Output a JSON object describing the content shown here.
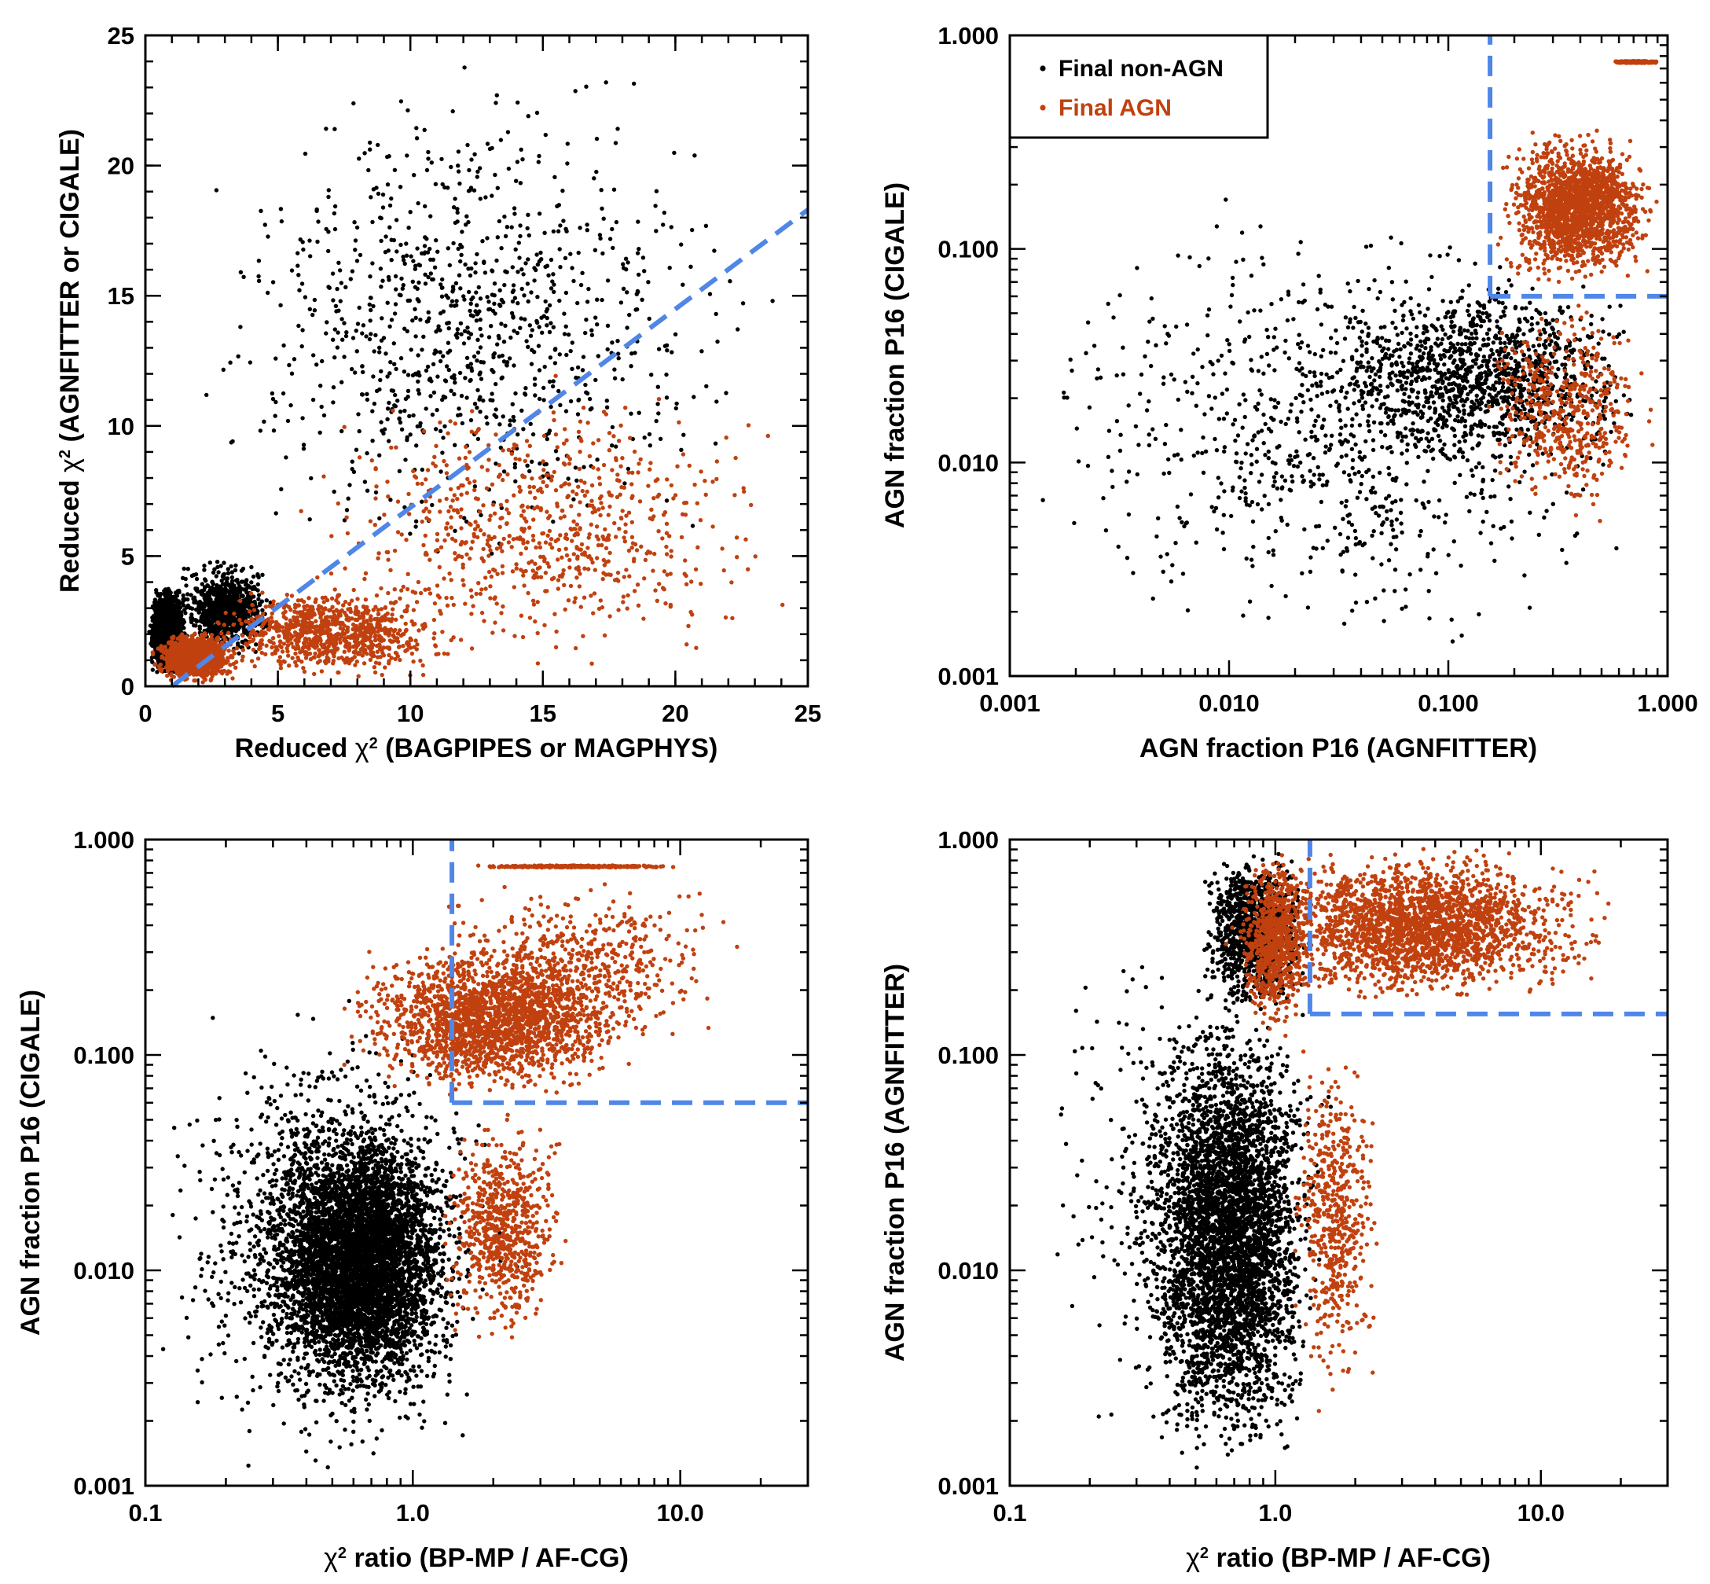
{
  "figure": {
    "colors": {
      "agn": "#c0410f",
      "non_agn": "#000000",
      "threshold": "#4f86e8",
      "axes": "#000000"
    }
  },
  "legend": {
    "entries": [
      {
        "label": "Final non-AGN",
        "color": "#000000"
      },
      {
        "label": "Final AGN",
        "color": "#c0410f"
      }
    ],
    "placement": "top-left of top-right panel"
  },
  "chart_data": [
    {
      "id": "chi2_vs_chi2",
      "type": "scatter",
      "xlabel_prefix": "Reduced ",
      "xlabel_symbol": "χ",
      "xlabel_sup": "2",
      "xlabel_suffix": " (BAGPIPES or MAGPHYS)",
      "ylabel_prefix": "Reduced ",
      "ylabel_symbol": "χ",
      "ylabel_sup": "2",
      "ylabel_suffix": " (AGNFITTER or CIGALE)",
      "xscale": "linear",
      "yscale": "linear",
      "xlim": [
        0,
        25
      ],
      "ylim": [
        0,
        25
      ],
      "xticks": [
        0,
        5,
        10,
        15,
        20,
        25
      ],
      "xtick_labels": [
        "0",
        "5",
        "10",
        "15",
        "20",
        "25"
      ],
      "yticks": [
        0,
        5,
        10,
        15,
        20,
        25
      ],
      "ytick_labels": [
        "0",
        "5",
        "10",
        "15",
        "20",
        "25"
      ],
      "threshold_lines": [
        {
          "x": [
            1,
            25
          ],
          "y": [
            0,
            18.3
          ]
        }
      ],
      "series": [
        {
          "name": "Final non-AGN",
          "color": "#000000",
          "approx_points": 4000,
          "clusters": [
            {
              "weight": 0.55,
              "x": [
                0.1,
                1.6
              ],
              "y": [
                0.3,
                4
              ],
              "lx": false,
              "ly": false
            },
            {
              "weight": 0.2,
              "x": [
                1,
                5
              ],
              "y": [
                1,
                5
              ],
              "lx": false,
              "ly": false
            },
            {
              "weight": 0.25,
              "x": [
                1,
                24
              ],
              "y": [
                3,
                24.5
              ],
              "lx": false,
              "ly": false
            }
          ]
        },
        {
          "name": "Final AGN",
          "color": "#c0410f",
          "approx_points": 3000,
          "clusters": [
            {
              "weight": 0.45,
              "x": [
                0.2,
                3.5
              ],
              "y": [
                0.1,
                2.2
              ],
              "lx": false,
              "ly": false
            },
            {
              "weight": 0.3,
              "x": [
                2,
                12
              ],
              "y": [
                0.1,
                4
              ],
              "lx": false,
              "ly": false
            },
            {
              "weight": 0.25,
              "x": [
                5,
                25
              ],
              "y": [
                0.1,
                12
              ],
              "lx": false,
              "ly": false
            }
          ]
        }
      ]
    },
    {
      "id": "cigale_vs_agnfitter",
      "type": "scatter",
      "xlabel": "AGN fraction P16 (AGNFITTER)",
      "ylabel": "AGN fraction P16 (CIGALE)",
      "xscale": "log",
      "yscale": "log",
      "xlim": [
        0.001,
        1.0
      ],
      "ylim": [
        0.001,
        1.0
      ],
      "xticks": [
        0.001,
        0.01,
        0.1,
        1.0
      ],
      "xtick_labels": [
        "0.001",
        "0.010",
        "0.100",
        "1.000"
      ],
      "yticks": [
        0.001,
        0.01,
        0.1,
        1.0
      ],
      "ytick_labels": [
        "0.001",
        "0.010",
        "0.100",
        "1.000"
      ],
      "threshold_lines": [
        {
          "x": [
            0.155,
            0.155
          ],
          "y": [
            0.06,
            1.0
          ]
        },
        {
          "x": [
            0.155,
            1.0
          ],
          "y": [
            0.06,
            0.06
          ]
        }
      ],
      "series": [
        {
          "name": "Final non-AGN",
          "color": "#000000",
          "approx_points": 2000,
          "clusters": [
            {
              "weight": 0.45,
              "x": [
                0.001,
                0.9
              ],
              "y": [
                0.001,
                0.2
              ],
              "lx": true,
              "ly": true
            },
            {
              "weight": 0.55,
              "x": [
                0.02,
                0.95
              ],
              "y": [
                0.008,
                0.08
              ],
              "lx": true,
              "ly": true
            }
          ]
        },
        {
          "name": "Final AGN",
          "color": "#c0410f",
          "approx_points": 2500,
          "clusters": [
            {
              "weight": 0.7,
              "x": [
                0.16,
                0.95
              ],
              "y": [
                0.065,
                0.38
              ],
              "lx": true,
              "ly": true
            },
            {
              "weight": 0.1,
              "x": [
                0.55,
                0.95
              ],
              "y": [
                0.74,
                0.76
              ],
              "lx": true,
              "ly": false
            },
            {
              "weight": 0.2,
              "x": [
                0.13,
                0.95
              ],
              "y": [
                0.005,
                0.06
              ],
              "lx": true,
              "ly": true
            }
          ]
        }
      ]
    },
    {
      "id": "cigale_vs_chi2ratio",
      "type": "scatter",
      "xlabel_prefix": "",
      "xlabel_symbol": "χ",
      "xlabel_sup": "2",
      "xlabel_suffix": " ratio (BP-MP / AF-CG)",
      "ylabel": "AGN fraction P16 (CIGALE)",
      "xscale": "log",
      "yscale": "log",
      "xlim": [
        0.1,
        30
      ],
      "ylim": [
        0.001,
        1.0
      ],
      "xticks": [
        0.1,
        1.0,
        10.0
      ],
      "xtick_labels": [
        "0.1",
        "1.0",
        "10.0"
      ],
      "yticks": [
        0.001,
        0.01,
        0.1,
        1.0
      ],
      "ytick_labels": [
        "0.001",
        "0.010",
        "0.100",
        "1.000"
      ],
      "threshold_lines": [
        {
          "x": [
            1.4,
            1.4
          ],
          "y": [
            0.06,
            1.0
          ]
        },
        {
          "x": [
            1.4,
            30
          ],
          "y": [
            0.06,
            0.06
          ]
        }
      ],
      "series": [
        {
          "name": "Final non-AGN",
          "color": "#000000",
          "approx_points": 6000,
          "clusters": [
            {
              "weight": 0.75,
              "x": [
                0.25,
                1.6
              ],
              "y": [
                0.002,
                0.06
              ],
              "lx": true,
              "ly": true
            },
            {
              "weight": 0.25,
              "x": [
                0.1,
                2.5
              ],
              "y": [
                0.001,
                0.2
              ],
              "lx": true,
              "ly": true
            }
          ]
        },
        {
          "name": "Final AGN",
          "color": "#c0410f",
          "approx_points": 3500,
          "clusters": [
            {
              "weight": 0.55,
              "x": [
                0.5,
                8
              ],
              "y": [
                0.06,
                0.35
              ],
              "lx": true,
              "ly": true
            },
            {
              "weight": 0.1,
              "x": [
                1.5,
                11
              ],
              "y": [
                0.74,
                0.76
              ],
              "lx": true,
              "ly": false
            },
            {
              "weight": 0.2,
              "x": [
                1.2,
                4
              ],
              "y": [
                0.004,
                0.06
              ],
              "lx": true,
              "ly": true
            },
            {
              "weight": 0.15,
              "x": [
                0.8,
                20
              ],
              "y": [
                0.1,
                0.7
              ],
              "lx": true,
              "ly": true
            }
          ]
        }
      ]
    },
    {
      "id": "agnfitter_vs_chi2ratio",
      "type": "scatter",
      "xlabel_prefix": "",
      "xlabel_symbol": "χ",
      "xlabel_sup": "2",
      "xlabel_suffix": " ratio (BP-MP / AF-CG)",
      "ylabel": "AGN fraction P16 (AGNFITTER)",
      "xscale": "log",
      "yscale": "log",
      "xlim": [
        0.1,
        30
      ],
      "ylim": [
        0.001,
        1.0
      ],
      "xticks": [
        0.1,
        1.0,
        10.0
      ],
      "xtick_labels": [
        "0.1",
        "1.0",
        "10.0"
      ],
      "yticks": [
        0.001,
        0.01,
        0.1,
        1.0
      ],
      "ytick_labels": [
        "0.001",
        "0.010",
        "0.100",
        "1.000"
      ],
      "threshold_lines": [
        {
          "x": [
            1.35,
            1.35
          ],
          "y": [
            0.155,
            1.0
          ]
        },
        {
          "x": [
            1.35,
            30
          ],
          "y": [
            0.155,
            0.155
          ]
        }
      ],
      "series": [
        {
          "name": "Final non-AGN",
          "color": "#000000",
          "approx_points": 5500,
          "clusters": [
            {
              "weight": 0.7,
              "x": [
                0.3,
                1.5
              ],
              "y": [
                0.001,
                0.2
              ],
              "lx": true,
              "ly": true
            },
            {
              "weight": 0.2,
              "x": [
                0.5,
                1.4
              ],
              "y": [
                0.15,
                0.95
              ],
              "lx": true,
              "ly": true
            },
            {
              "weight": 0.1,
              "x": [
                0.12,
                2
              ],
              "y": [
                0.001,
                0.5
              ],
              "lx": true,
              "ly": true
            }
          ]
        },
        {
          "name": "Final AGN",
          "color": "#c0410f",
          "approx_points": 3500,
          "clusters": [
            {
              "weight": 0.65,
              "x": [
                0.6,
                20
              ],
              "y": [
                0.16,
                0.97
              ],
              "lx": true,
              "ly": true
            },
            {
              "weight": 0.2,
              "x": [
                0.7,
                1.4
              ],
              "y": [
                0.12,
                0.95
              ],
              "lx": true,
              "ly": true
            },
            {
              "weight": 0.15,
              "x": [
                1.1,
                2.6
              ],
              "y": [
                0.002,
                0.15
              ],
              "lx": true,
              "ly": true
            }
          ]
        }
      ]
    }
  ]
}
